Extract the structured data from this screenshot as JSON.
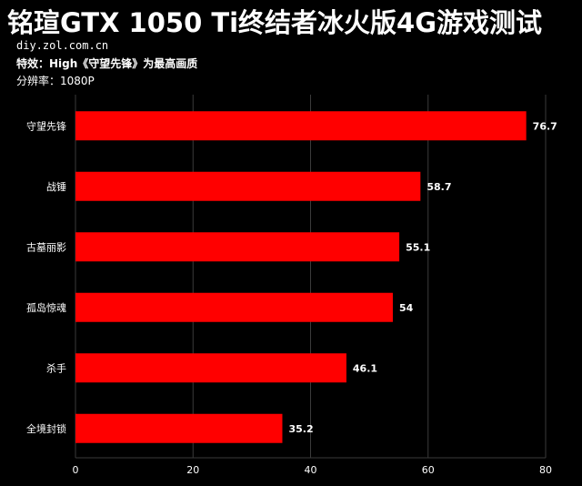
{
  "header": {
    "title": "铭瑄GTX  1050 Ti终结者冰火版4G游戏测试",
    "site": "diy.zol.com.cn",
    "effect": "特效：High《守望先锋》为最高画质",
    "resolution": "分辨率：1080P"
  },
  "colors": {
    "background": "#000000",
    "bar": "#ff0000",
    "grid": "#3a3a3a",
    "text": "#ffffff"
  },
  "chart_data": {
    "type": "bar",
    "orientation": "horizontal",
    "categories": [
      "守望先锋",
      "战锤",
      "古墓丽影",
      "孤岛惊魂",
      "杀手",
      "全境封锁"
    ],
    "values": [
      76.7,
      58.7,
      55.1,
      54,
      46.1,
      35.2
    ],
    "value_labels": [
      "76.7",
      "58.7",
      "55.1",
      "54",
      "46.1",
      "35.2"
    ],
    "xlim": [
      0,
      80
    ],
    "x_ticks": [
      0,
      20,
      40,
      60,
      80
    ],
    "grid": true,
    "legend": false
  }
}
